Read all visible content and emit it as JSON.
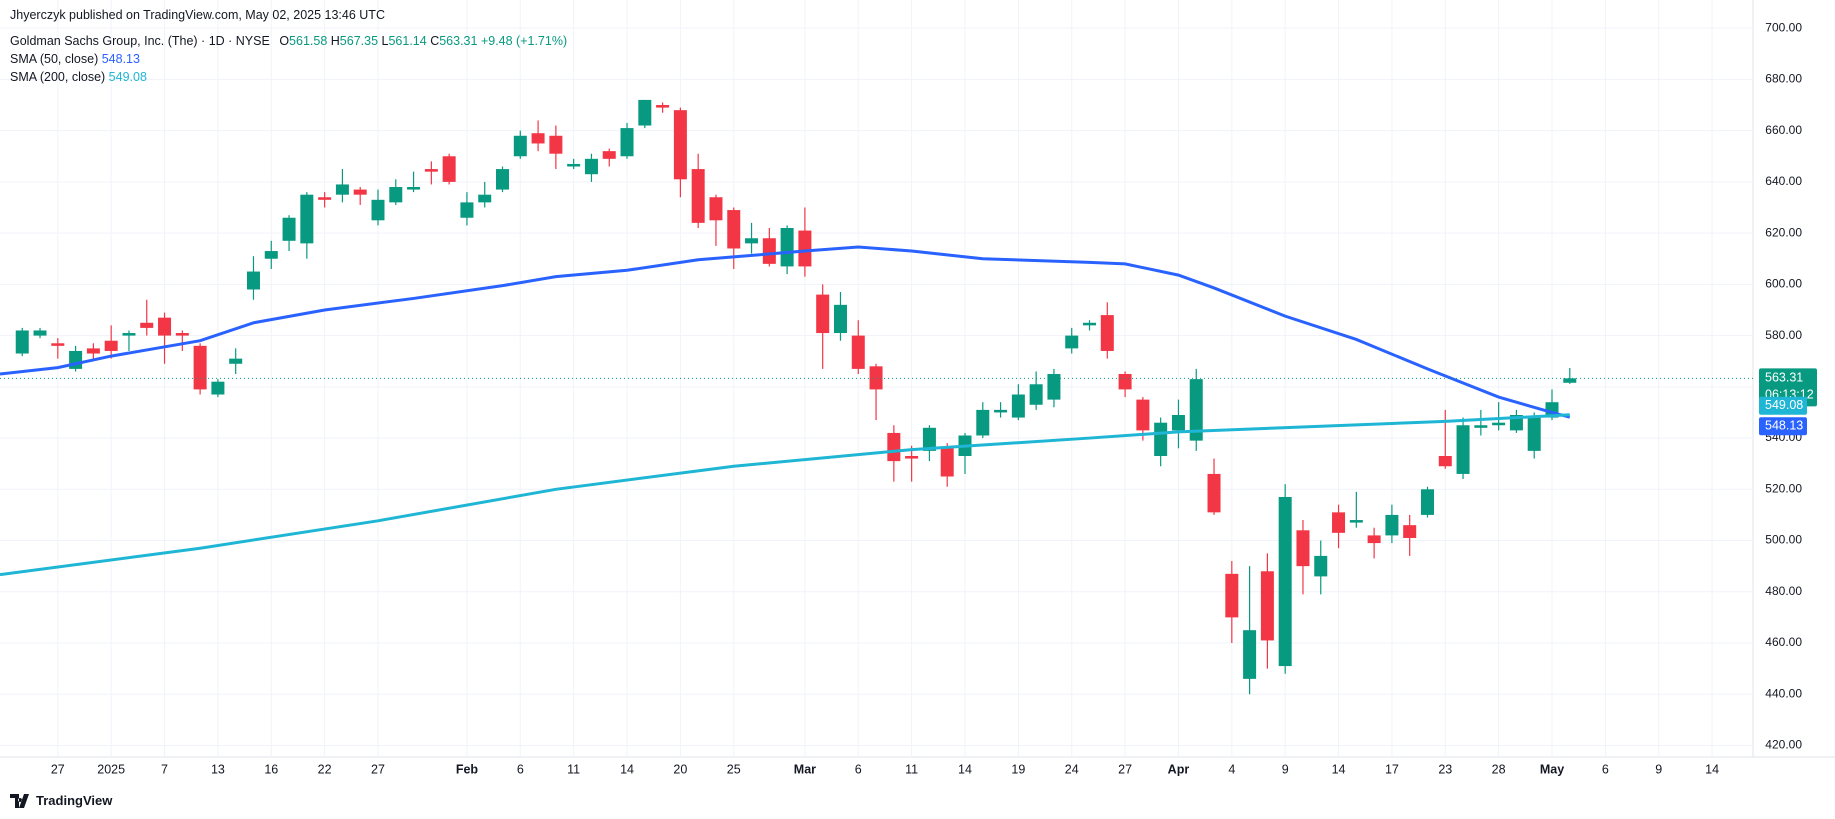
{
  "chart_data": {
    "type": "candlestick",
    "publisher": "Jhyerczyk published on TradingView.com, May 02, 2025 13:46 UTC",
    "title": "Goldman Sachs Group, Inc. (The) · 1D · NYSE",
    "ohlc_labels": [
      "O",
      "H",
      "L",
      "C"
    ],
    "change": "+9.48 (+1.71%)",
    "countdown": "06:13:12",
    "brand": "TradingView",
    "up_color": "#089981",
    "down_color": "#f23645",
    "grid": true,
    "open": [
      573,
      580,
      577,
      567,
      575,
      578,
      580,
      585,
      587,
      581,
      576,
      557,
      569,
      598,
      610,
      617,
      616,
      634,
      635,
      637,
      625,
      632,
      637,
      645,
      650,
      626,
      632,
      637,
      650,
      659,
      658,
      646,
      643,
      652,
      650,
      662,
      670,
      668,
      645,
      634,
      629,
      616,
      618,
      607,
      621,
      596,
      581,
      580,
      568,
      542,
      533,
      535,
      536,
      533,
      541,
      550,
      548,
      553,
      555,
      575,
      584,
      588,
      565,
      555,
      533,
      543,
      539,
      526,
      487,
      446,
      488,
      451,
      504,
      486,
      511,
      507,
      502,
      502,
      506,
      510,
      533,
      526,
      544,
      545,
      543,
      535,
      548,
      561.58
    ],
    "high": [
      583,
      583,
      579,
      576,
      577,
      584,
      582,
      594,
      589,
      582,
      577,
      563,
      575,
      611,
      617,
      627,
      636,
      636,
      645,
      638,
      637,
      641,
      644,
      648,
      651,
      636,
      640,
      646,
      660,
      664,
      662,
      649,
      651,
      653,
      663,
      672,
      671,
      669,
      651,
      635,
      630,
      624,
      622,
      623,
      630,
      600,
      597,
      586,
      569,
      545,
      537,
      545,
      538,
      542,
      554,
      554,
      561,
      566,
      567,
      583,
      586,
      593,
      566,
      556,
      548,
      555,
      567,
      532,
      492,
      490,
      495,
      522,
      508,
      500,
      514,
      519,
      505,
      514,
      510,
      521,
      551,
      548,
      551,
      554,
      551,
      550,
      559,
      567.35
    ],
    "low": [
      572,
      579,
      571,
      566,
      570,
      571,
      574,
      580,
      569,
      574,
      557,
      556,
      565,
      594,
      606,
      613,
      610,
      630,
      632,
      631,
      623,
      631,
      636,
      639,
      639,
      623,
      630,
      636,
      649,
      652,
      645,
      645,
      640,
      646,
      649,
      661,
      667,
      634,
      622,
      615,
      606,
      612,
      607,
      604,
      603,
      567,
      578,
      565,
      547,
      523,
      523,
      531,
      521,
      526,
      540,
      548,
      547,
      551,
      552,
      573,
      582,
      571,
      556,
      539,
      529,
      536,
      535,
      510,
      460,
      440,
      450,
      448,
      479,
      479,
      497,
      505,
      493,
      499,
      494,
      509,
      528,
      524,
      541,
      543,
      542,
      532,
      547,
      561.14
    ],
    "close": [
      582,
      582,
      576,
      574,
      573,
      574,
      581,
      583,
      580,
      580,
      559,
      562,
      571,
      605,
      613,
      626,
      635,
      633,
      639,
      635,
      633,
      638,
      638,
      644,
      640,
      632,
      635,
      645,
      658,
      655,
      651,
      647,
      649,
      649,
      661,
      672,
      669,
      641,
      624,
      625,
      614,
      618,
      608,
      622,
      607,
      581,
      592,
      567,
      559,
      531,
      532,
      544,
      525,
      541,
      551,
      551,
      557,
      561,
      565,
      580,
      585,
      574,
      559,
      543,
      546,
      549,
      563,
      511,
      470,
      465,
      461,
      517,
      490,
      494,
      503,
      508,
      499,
      510,
      501,
      520,
      529,
      545,
      545,
      546,
      549,
      548,
      554,
      563.31
    ],
    "lines": [
      {
        "name": "SMA (50, close)",
        "color": "#2962ff",
        "x": [
          -1.25,
          2,
          5,
          10,
          13,
          17,
          22,
          27,
          30,
          34,
          38,
          44,
          47,
          50,
          54,
          60,
          62,
          65,
          67,
          71,
          75,
          79,
          83,
          86,
          87
        ],
        "values": [
          565,
          567.5,
          572,
          578,
          585,
          590,
          594.5,
          599.5,
          603,
          605.5,
          609.6,
          613,
          614.6,
          613,
          610,
          608.6,
          608,
          603.6,
          598.6,
          587.6,
          578.5,
          567,
          556,
          550,
          548.13
        ]
      },
      {
        "name": "SMA (200, close)",
        "color": "#1eb6d4",
        "x": [
          -1.25,
          10,
          20,
          30,
          40,
          50,
          60,
          65,
          70,
          80,
          87
        ],
        "values": [
          486.7,
          497,
          507.7,
          520,
          529,
          535.5,
          540,
          542.4,
          543.8,
          546.5,
          549.08
        ]
      }
    ],
    "xlim": [
      -1.25,
      97.3
    ],
    "ylim": [
      415.5,
      711
    ],
    "yticks": [
      {
        "value": 420,
        "label": "420.00"
      },
      {
        "value": 440,
        "label": "440.00"
      },
      {
        "value": 460,
        "label": "460.00"
      },
      {
        "value": 480,
        "label": "480.00"
      },
      {
        "value": 500,
        "label": "500.00"
      },
      {
        "value": 520,
        "label": "520.00"
      },
      {
        "value": 540,
        "label": "540.00"
      },
      {
        "value": 560,
        "label": "560.00"
      },
      {
        "value": 580,
        "label": "580.00"
      },
      {
        "value": 600,
        "label": "600.00"
      },
      {
        "value": 620,
        "label": "620.00"
      },
      {
        "value": 640,
        "label": "640.00"
      },
      {
        "value": 660,
        "label": "660.00"
      },
      {
        "value": 680,
        "label": "680.00"
      },
      {
        "value": 700,
        "label": "700.00"
      }
    ],
    "xticks": [
      {
        "value": 2,
        "label": "27"
      },
      {
        "value": 5,
        "label": "2025"
      },
      {
        "value": 8,
        "label": "7"
      },
      {
        "value": 11,
        "label": "13"
      },
      {
        "value": 14,
        "label": "16"
      },
      {
        "value": 17,
        "label": "22"
      },
      {
        "value": 20,
        "label": "27"
      },
      {
        "value": 25,
        "label": "Feb"
      },
      {
        "value": 28,
        "label": "6"
      },
      {
        "value": 31,
        "label": "11"
      },
      {
        "value": 34,
        "label": "14"
      },
      {
        "value": 37,
        "label": "20"
      },
      {
        "value": 40,
        "label": "25"
      },
      {
        "value": 44,
        "label": "Mar"
      },
      {
        "value": 47,
        "label": "6"
      },
      {
        "value": 50,
        "label": "11"
      },
      {
        "value": 53,
        "label": "14"
      },
      {
        "value": 56,
        "label": "19"
      },
      {
        "value": 59,
        "label": "24"
      },
      {
        "value": 62,
        "label": "27"
      },
      {
        "value": 65,
        "label": "Apr"
      },
      {
        "value": 68,
        "label": "4"
      },
      {
        "value": 71,
        "label": "9"
      },
      {
        "value": 74,
        "label": "14"
      },
      {
        "value": 77,
        "label": "17"
      },
      {
        "value": 80,
        "label": "23"
      },
      {
        "value": 83,
        "label": "28"
      },
      {
        "value": 86,
        "label": "May"
      },
      {
        "value": 89,
        "label": "6"
      },
      {
        "value": 92,
        "label": "9"
      },
      {
        "value": 95,
        "label": "14"
      }
    ]
  }
}
